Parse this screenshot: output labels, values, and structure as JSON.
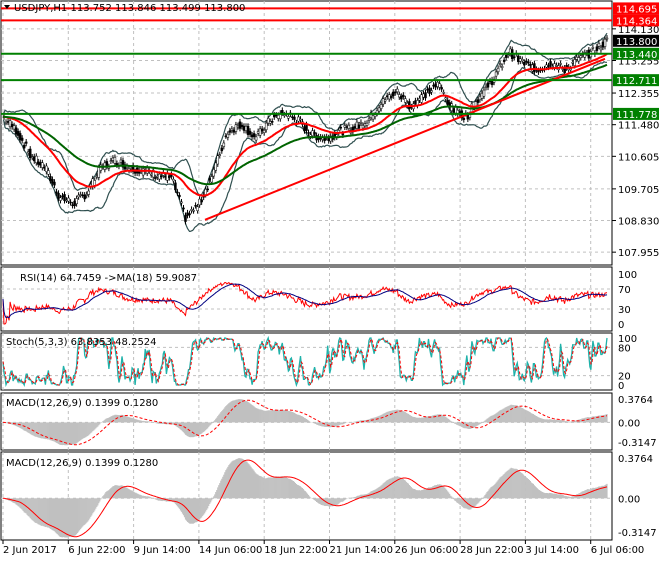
{
  "chart_data": {
    "type": "line",
    "symbol_header": "USDJPY,H1  113.752 113.846 113.499 113.800",
    "price_keypoints": [
      111.7,
      111.3,
      110.6,
      110.3,
      109.5,
      109.3,
      109.6,
      110.3,
      110.5,
      110.3,
      110.2,
      110.1,
      110.0,
      108.9,
      109.3,
      110.2,
      111.3,
      111.5,
      111.1,
      111.6,
      111.8,
      111.6,
      111.2,
      111.1,
      111.3,
      111.4,
      111.6,
      112.1,
      112.4,
      112.0,
      112.3,
      112.6,
      111.9,
      111.7,
      112.3,
      112.8,
      113.5,
      113.2,
      113.0,
      113.2,
      113.0,
      113.3,
      113.5,
      113.8
    ],
    "price_axis": {
      "min": 107.6,
      "max": 114.9,
      "ticks": [
        "114.130",
        "113.255",
        "112.355",
        "111.480",
        "110.605",
        "109.705",
        "108.830",
        "107.955"
      ]
    },
    "levels": [
      {
        "value": 114.695,
        "label": "114.695",
        "color": "#ff0000"
      },
      {
        "value": 114.364,
        "label": "114.364",
        "color": "#ff0000"
      },
      {
        "value": 113.44,
        "label": "113.440",
        "color": "#008000"
      },
      {
        "value": 112.711,
        "label": "112.711",
        "color": "#008000"
      },
      {
        "value": 111.778,
        "label": "111.778",
        "color": "#008000"
      }
    ],
    "current_price": {
      "value": 113.8,
      "label": "113.800",
      "color": "#000000"
    },
    "trendline": {
      "from": 108.85,
      "to": 113.3,
      "color": "#ff0000"
    },
    "x_labels": [
      "2 Jun 2017",
      "6 Jun 22:00",
      "9 Jun 14:00",
      "14 Jun 06:00",
      "18 Jun 22:00",
      "21 Jun 14:00",
      "26 Jun 06:00",
      "28 Jun 22:00",
      "3 Jul 14:00",
      "6 Jul 06:00"
    ],
    "rsi": {
      "label": "RSI(14) 64.7459  ->MA(18) 59.9087",
      "ticks": [
        "100",
        "70",
        "30",
        "0"
      ]
    },
    "stoch": {
      "label": "Stoch(5,3,3) 63.8353 48.2524",
      "ticks": [
        "100",
        "80",
        "20",
        "0"
      ]
    },
    "macd1": {
      "label": "MACD(12,26,9) 0.1399 0.1280",
      "ticks": [
        "0.3764",
        "0.00",
        "-0.3147"
      ]
    },
    "macd2": {
      "label": "MACD(12,26,9) 0.1399 0.1280",
      "ticks": [
        "0.3764",
        "0.00",
        "-0.3147"
      ]
    },
    "colors": {
      "bull": "#ffffff",
      "bear": "#000000",
      "ma_red": "#ff0000",
      "ma_green": "#006400",
      "bands": "#2f4f4f",
      "rsi": "#ff0000",
      "rsi_ma": "#000080",
      "stoch_main": "#20b2aa",
      "stoch_sig": "#ff0000",
      "hist": "#c0c0c0"
    }
  }
}
